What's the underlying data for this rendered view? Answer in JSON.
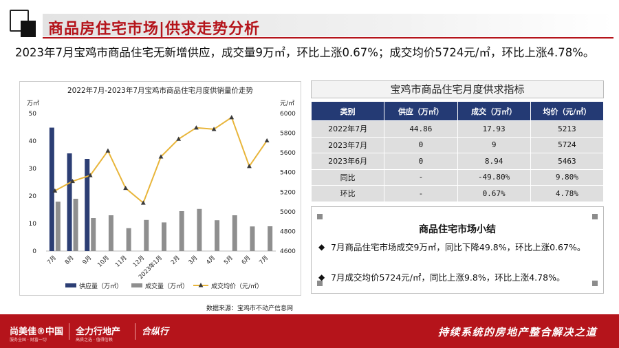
{
  "header": {
    "title": "商品房住宅市场|供求走势分析"
  },
  "intro_text": "2023年7月宝鸡市商品住宅无新增供应，成交量9万㎡，环比上涨0.67%；成交均价5724元/㎡，环比上涨4.78%。",
  "chart": {
    "title": "2022年7月-2023年7月宝鸡市商品住宅月度供销量价走势",
    "left_unit": "万㎡",
    "right_unit": "元/㎡",
    "source": "数据来源：宝鸡市不动产信息网"
  },
  "chart_data": {
    "type": "bar",
    "title": "2022年7月-2023年7月宝鸡市商品住宅月度供销量价走势",
    "categories": [
      "7月",
      "8月",
      "9月",
      "10月",
      "11月",
      "12月",
      "2023年1月",
      "2月",
      "3月",
      "4月",
      "5月",
      "6月",
      "7月"
    ],
    "series": [
      {
        "name": "供应量（万㎡）",
        "type": "bar",
        "axis": "left",
        "color": "#2c3e74",
        "values": [
          44.86,
          35.5,
          33.5,
          0,
          0,
          0,
          0,
          0,
          0,
          0,
          0,
          0,
          0
        ]
      },
      {
        "name": "成交量（万㎡）",
        "type": "bar",
        "axis": "left",
        "color": "#8f8f8f",
        "values": [
          17.93,
          19.0,
          12.0,
          13.0,
          8.3,
          11.3,
          10.4,
          14.5,
          15.3,
          11.2,
          13.0,
          8.94,
          9.0
        ]
      },
      {
        "name": "成交均价（元/㎡）",
        "type": "line",
        "axis": "right",
        "color": "#e8b53a",
        "values": [
          5213,
          5310,
          5370,
          5620,
          5240,
          5090,
          5560,
          5740,
          5855,
          5840,
          5960,
          5463,
          5724
        ]
      }
    ],
    "ylim_left": [
      0,
      50
    ],
    "yticks_left": [
      0,
      10,
      20,
      30,
      40,
      50
    ],
    "ylim_right": [
      4600,
      6000
    ],
    "yticks_right": [
      4600,
      4800,
      5000,
      5200,
      5400,
      5600,
      5800,
      6000
    ],
    "legend_position": "bottom",
    "grid": false
  },
  "table": {
    "title": "宝鸡市商品住宅月度供求指标",
    "headers": [
      "类别",
      "供应（万㎡）",
      "成交（万㎡）",
      "均价（元/㎡）"
    ],
    "rows": [
      [
        "2022年7月",
        "44.86",
        "17.93",
        "5213"
      ],
      [
        "2023年7月",
        "0",
        "9",
        "5724"
      ],
      [
        "2023年6月",
        "0",
        "8.94",
        "5463"
      ],
      [
        "同比",
        "-",
        "-49.80%",
        "9.80%"
      ],
      [
        "环比",
        "-",
        "0.67%",
        "4.78%"
      ]
    ]
  },
  "summary": {
    "title": "商品住宅市场小结",
    "bullets": [
      "7月商品住宅市场成交9万㎡，同比下降49.8%，环比上涨0.67%。",
      "7月成交均价5724元/㎡，同比上涨9.8%，环比上涨4.78%。"
    ]
  },
  "footer": {
    "brand1": "尚美佳®中国",
    "brand1_sub": "服务全国 · 财富一切",
    "brand2": "全力行地产",
    "brand2_sub": "高质之选 · 值得信赖",
    "brand3": "合纵行",
    "slogan": "持续系统的房地产整合解决之道"
  }
}
